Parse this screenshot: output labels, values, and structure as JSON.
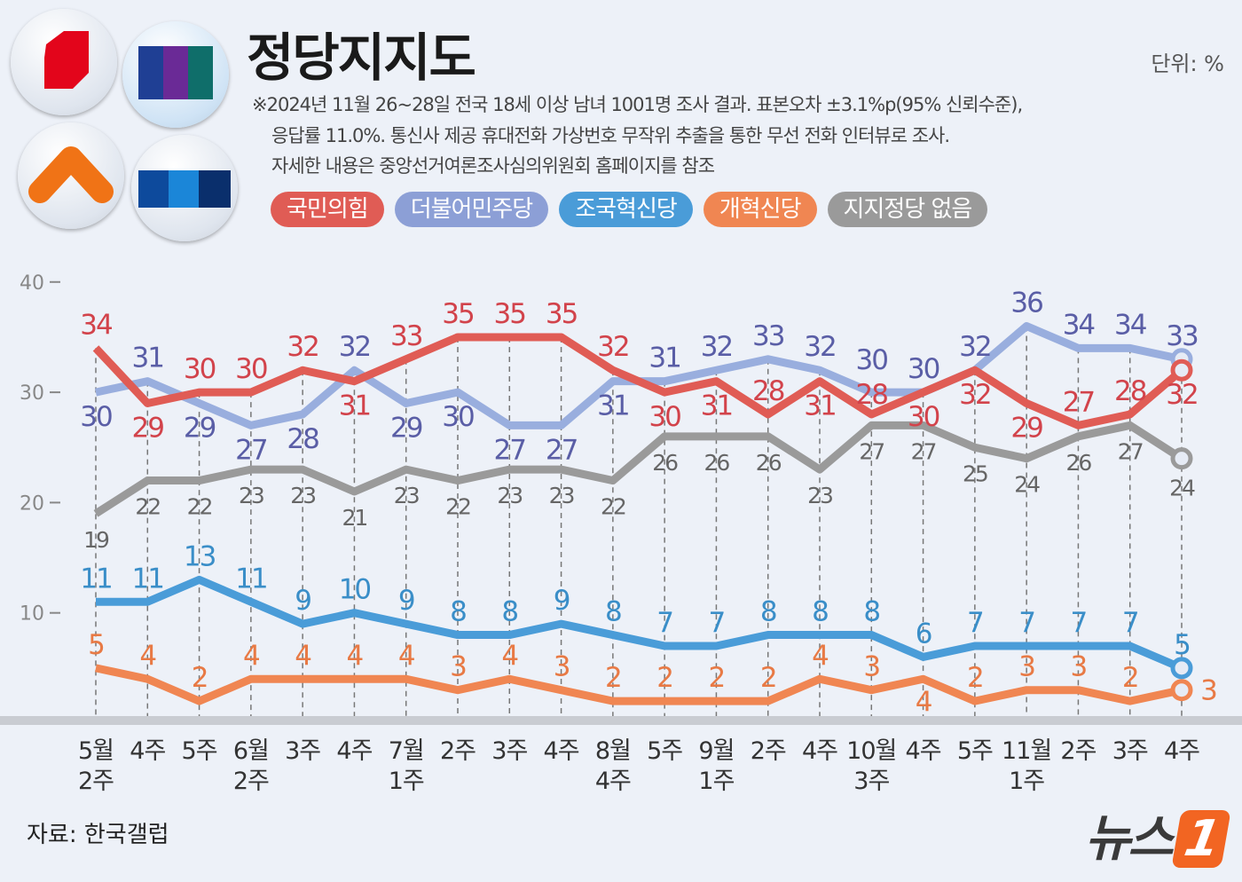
{
  "header": {
    "title": "정당지지도",
    "unit": "단위: %",
    "notes": [
      "※2024년 11월 26~28일 전국 18세 이상 남녀 1001명 조사 결과. 표본오차 ±3.1%p(95% 신뢰수준),",
      "응답률 11.0%. 통신사 제공 휴대전화 가상번호 무작위 추출을 통한 무선 전화 인터뷰로 조사.",
      "자세한 내용은 중앙선거여론조사심의위원회 홈페이지를 참조"
    ]
  },
  "footer": {
    "source": "자료: 한국갤럽",
    "brand": "뉴스",
    "brand_num": "1"
  },
  "chart_data": {
    "type": "line",
    "categories": [
      [
        "5월",
        "2주"
      ],
      [
        "4주"
      ],
      [
        "5주"
      ],
      [
        "6월",
        "2주"
      ],
      [
        "3주"
      ],
      [
        "4주"
      ],
      [
        "7월",
        "1주"
      ],
      [
        "2주"
      ],
      [
        "3주"
      ],
      [
        "4주"
      ],
      [
        "8월",
        "4주"
      ],
      [
        "5주"
      ],
      [
        "9월",
        "1주"
      ],
      [
        "2주"
      ],
      [
        "4주"
      ],
      [
        "10월",
        "3주"
      ],
      [
        "4주"
      ],
      [
        "5주"
      ],
      [
        "11월",
        "1주"
      ],
      [
        "2주"
      ],
      [
        "3주"
      ],
      [
        "4주"
      ]
    ],
    "yticks": [
      10,
      20,
      30,
      40
    ],
    "ylim": [
      0,
      40
    ],
    "grid": false,
    "legend_position": "top",
    "series": [
      {
        "name": "국민의힘",
        "color": "#e05c55",
        "label_color": "#d2434b",
        "values": [
          34,
          29,
          30,
          30,
          32,
          31,
          33,
          35,
          35,
          35,
          32,
          30,
          31,
          28,
          31,
          28,
          30,
          32,
          29,
          27,
          28,
          32
        ]
      },
      {
        "name": "더불어민주당",
        "color": "#99aede",
        "label_color": "#5a5ea6",
        "values": [
          30,
          31,
          29,
          27,
          28,
          32,
          29,
          30,
          27,
          27,
          31,
          31,
          32,
          33,
          32,
          30,
          30,
          32,
          36,
          34,
          34,
          33
        ]
      },
      {
        "name": "조국혁신당",
        "color": "#4a9cd8",
        "label_color": "#3a8ec8",
        "values": [
          11,
          11,
          13,
          11,
          9,
          10,
          9,
          8,
          8,
          9,
          8,
          7,
          7,
          8,
          8,
          8,
          6,
          7,
          7,
          7,
          7,
          5
        ]
      },
      {
        "name": "개혁신당",
        "color": "#f08652",
        "label_color": "#e87a45",
        "values": [
          5,
          4,
          2,
          4,
          4,
          4,
          4,
          3,
          4,
          3,
          2,
          2,
          2,
          2,
          4,
          3,
          4,
          2,
          3,
          3,
          2,
          3
        ]
      },
      {
        "name": "지지정당 없음",
        "color": "#9a9a9a",
        "label_color": "#666666",
        "values": [
          19,
          22,
          22,
          23,
          23,
          21,
          23,
          22,
          23,
          23,
          22,
          26,
          26,
          26,
          23,
          27,
          27,
          25,
          24,
          26,
          27,
          24
        ]
      }
    ]
  }
}
